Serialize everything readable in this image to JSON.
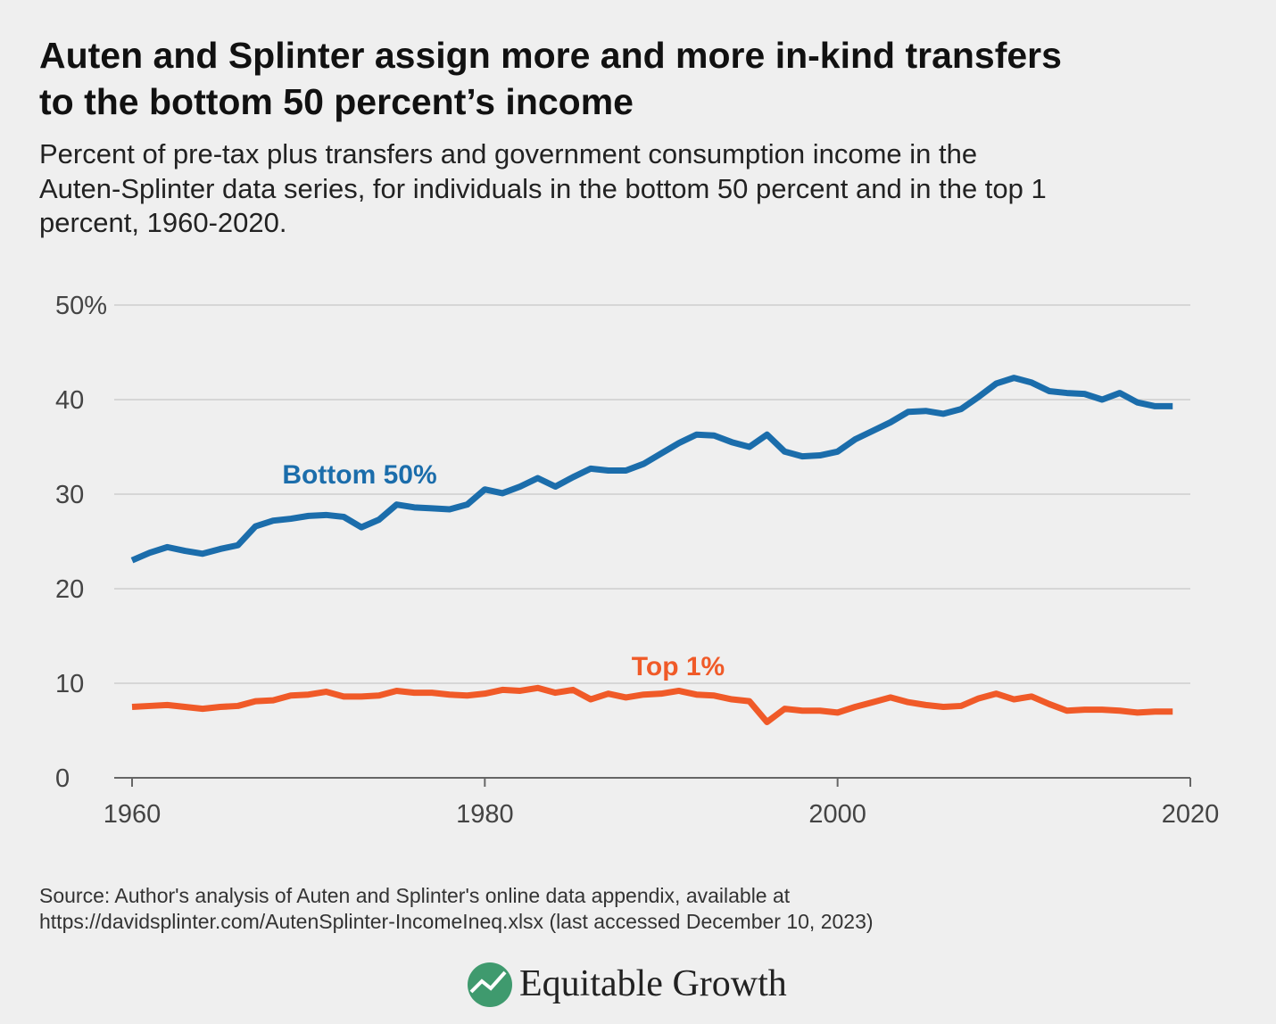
{
  "chart_data": {
    "type": "line",
    "title": [
      "Auten and Splinter assign more and more in-kind transfers",
      "to the bottom 50 percent’s income"
    ],
    "subtitle": [
      "Percent of pre-tax plus transfers and government consumption income in the",
      "Auten-Splinter data series, for individuals in the bottom 50 percent and in the top 1",
      "percent, 1960-2020."
    ],
    "x": [
      1960,
      1961,
      1962,
      1963,
      1964,
      1965,
      1966,
      1967,
      1968,
      1969,
      1970,
      1971,
      1972,
      1973,
      1974,
      1975,
      1976,
      1977,
      1978,
      1979,
      1980,
      1981,
      1982,
      1983,
      1984,
      1985,
      1986,
      1987,
      1988,
      1989,
      1990,
      1991,
      1992,
      1993,
      1994,
      1995,
      1996,
      1997,
      1998,
      1999,
      2000,
      2001,
      2002,
      2003,
      2004,
      2005,
      2006,
      2007,
      2008,
      2009,
      2010,
      2011,
      2012,
      2013,
      2014,
      2015,
      2016,
      2017,
      2018,
      2019
    ],
    "series": [
      {
        "name": "Bottom 50%",
        "color": "#1b6dab",
        "values": [
          23.0,
          23.8,
          24.4,
          24.0,
          23.7,
          24.2,
          24.6,
          26.6,
          27.2,
          27.4,
          27.7,
          27.8,
          27.6,
          26.5,
          27.3,
          28.9,
          28.6,
          28.5,
          28.4,
          28.9,
          30.5,
          30.1,
          30.8,
          31.7,
          30.8,
          31.8,
          32.7,
          32.5,
          32.5,
          33.2,
          34.3,
          35.4,
          36.3,
          36.2,
          35.5,
          35.0,
          36.3,
          34.5,
          34.0,
          34.1,
          34.5,
          35.8,
          36.7,
          37.6,
          38.7,
          38.8,
          38.5,
          39.0,
          40.3,
          41.7,
          42.3,
          41.8,
          40.9,
          40.7,
          40.6,
          40.0,
          40.7,
          39.7,
          39.3,
          39.3
        ]
      },
      {
        "name": "Top 1%",
        "color": "#f05a28",
        "values": [
          7.5,
          7.6,
          7.7,
          7.5,
          7.3,
          7.5,
          7.6,
          8.1,
          8.2,
          8.7,
          8.8,
          9.1,
          8.6,
          8.6,
          8.7,
          9.2,
          9.0,
          9.0,
          8.8,
          8.7,
          8.9,
          9.3,
          9.2,
          9.5,
          9.0,
          9.3,
          8.3,
          8.9,
          8.5,
          8.8,
          8.9,
          9.2,
          8.8,
          8.7,
          8.3,
          8.1,
          5.9,
          7.3,
          7.1,
          7.1,
          6.9,
          7.5,
          8.0,
          8.5,
          8.0,
          7.7,
          7.5,
          7.6,
          8.4,
          8.9,
          8.3,
          8.6,
          7.8,
          7.1,
          7.2,
          7.2,
          7.1,
          6.9,
          7.0,
          7.0
        ]
      }
    ],
    "xlim": [
      1960,
      2020
    ],
    "xticks": [
      1960,
      1980,
      2000,
      2020
    ],
    "ylim": [
      0,
      50
    ],
    "yticks": [
      0,
      10,
      20,
      30,
      40,
      {
        "value": 50,
        "label": "50%"
      }
    ],
    "grid": true,
    "source": [
      "Source: Author's analysis of Auten and Splinter's online data appendix, available at",
      "https://davidsplinter.com/AutenSplinter-IncomeIneq.xlsx (last accessed December 10, 2023)"
    ],
    "logo": "Equitable Growth"
  }
}
